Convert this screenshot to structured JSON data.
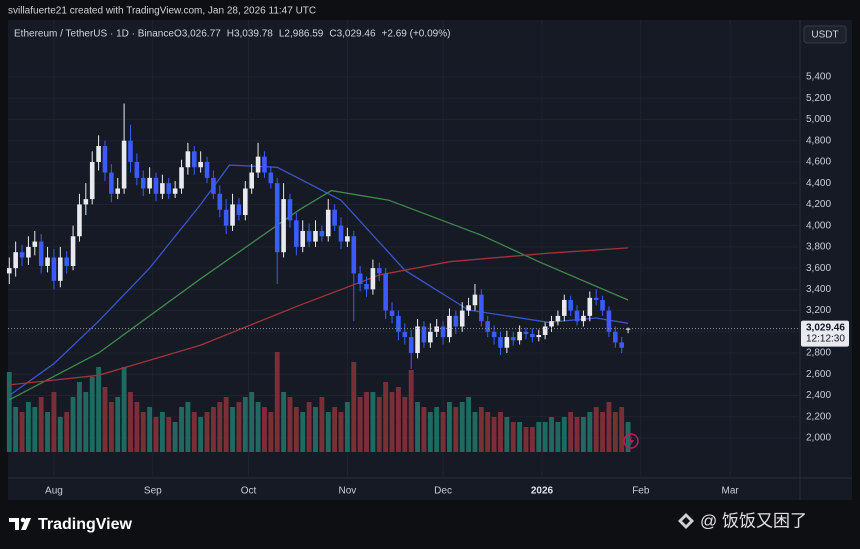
{
  "header": {
    "credit": "svillafuerte21 created with TradingView.com, Jan 28, 2026 11:47 UTC"
  },
  "chart_data": {
    "type": "candlestick",
    "legend": {
      "name": "Ethereum / TetherUS · 1D · Binance",
      "items": [
        "O3,026.77",
        "H3,039.78",
        "L2,986.59",
        "C3,029.46",
        "+2.69 (+0.09%)"
      ]
    },
    "y_axis_unit": "USDT",
    "x": [
      -14,
      -12,
      -10,
      -8,
      -6,
      -4,
      -2,
      0,
      2,
      4,
      6,
      8,
      10,
      12,
      14,
      16,
      18,
      20,
      22,
      24,
      26,
      28,
      30,
      32,
      34,
      36,
      38,
      40,
      42,
      44,
      46,
      48,
      50,
      52,
      54,
      56,
      58,
      60,
      62,
      64,
      66,
      68,
      70,
      72,
      74,
      76,
      78,
      80,
      82,
      84,
      86,
      88,
      90,
      92,
      94,
      96,
      98,
      100,
      102,
      104,
      106,
      108,
      110,
      112,
      114,
      116,
      118,
      120,
      122,
      124,
      126,
      128,
      130,
      132,
      134,
      136,
      138,
      140,
      142,
      144,
      146,
      148,
      150,
      152,
      154,
      156,
      158,
      160,
      162,
      164,
      166,
      168,
      170,
      172,
      174,
      176,
      178,
      180
    ],
    "open": [
      3550,
      3600,
      3750,
      3700,
      3800,
      3850,
      3620,
      3700,
      3480,
      3700,
      3620,
      3900,
      4200,
      4250,
      4600,
      4750,
      4500,
      4300,
      4350,
      4800,
      4600,
      4450,
      4350,
      4450,
      4300,
      4400,
      4300,
      4350,
      4550,
      4700,
      4550,
      4600,
      4450,
      4300,
      4150,
      4000,
      4200,
      4100,
      4350,
      4500,
      4650,
      4500,
      4400,
      3750,
      4250,
      4050,
      3800,
      3950,
      3850,
      3950,
      3900,
      4150,
      4000,
      3850,
      3900,
      3550,
      3450,
      3400,
      3600,
      3550,
      3200,
      3150,
      3000,
      2950,
      2800,
      3050,
      2900,
      3000,
      3050,
      2950,
      3150,
      3050,
      3200,
      3250,
      3350,
      3100,
      3000,
      2950,
      2850,
      2950,
      2920,
      3000,
      2980,
      2950,
      2970,
      3050,
      3100,
      3150,
      3300,
      3200,
      3100,
      3150,
      3320,
      3300,
      3200,
      3000,
      2900,
      3026.77
    ],
    "high": [
      3700,
      3850,
      3820,
      3900,
      3950,
      3920,
      3800,
      3780,
      3800,
      3760,
      4000,
      4300,
      4400,
      4700,
      4850,
      4800,
      4580,
      4450,
      5150,
      4950,
      4680,
      4520,
      4550,
      4500,
      4480,
      4450,
      4420,
      4620,
      4780,
      4750,
      4700,
      4650,
      4520,
      4380,
      4250,
      4300,
      4260,
      4420,
      4580,
      4780,
      4700,
      4560,
      4450,
      4400,
      4300,
      4120,
      4050,
      4020,
      4050,
      4000,
      4250,
      4200,
      4080,
      3980,
      3950,
      3620,
      3520,
      3680,
      3650,
      3600,
      3280,
      3200,
      3080,
      3020,
      3120,
      3100,
      3080,
      3120,
      3100,
      3220,
      3200,
      3280,
      3320,
      3450,
      3400,
      3150,
      3060,
      3000,
      3010,
      3000,
      3060,
      3040,
      3030,
      3020,
      3090,
      3150,
      3200,
      3350,
      3340,
      3250,
      3200,
      3380,
      3400,
      3340,
      3240,
      3050,
      2950,
      3039.78
    ],
    "low": [
      3450,
      3520,
      3620,
      3630,
      3720,
      3550,
      3560,
      3400,
      3420,
      3550,
      3580,
      3850,
      4100,
      4200,
      4520,
      4420,
      4220,
      4250,
      4300,
      4500,
      4380,
      4280,
      4300,
      4230,
      4250,
      4250,
      4260,
      4300,
      4480,
      4480,
      4500,
      4400,
      4250,
      4080,
      3920,
      3950,
      4050,
      4050,
      4300,
      4450,
      4450,
      4350,
      3450,
      3700,
      3980,
      3720,
      3750,
      3800,
      3800,
      3850,
      3850,
      3950,
      3780,
      3800,
      3100,
      3380,
      3330,
      3350,
      3480,
      3120,
      3080,
      2920,
      2880,
      2650,
      2750,
      2850,
      2850,
      2950,
      2880,
      2900,
      2980,
      3000,
      3150,
      3200,
      3050,
      2950,
      2880,
      2780,
      2800,
      2870,
      2880,
      2930,
      2900,
      2910,
      2930,
      3000,
      3060,
      3100,
      3150,
      3060,
      3050,
      3100,
      3250,
      3150,
      2950,
      2850,
      2800,
      2986.59
    ],
    "close": [
      3600,
      3750,
      3700,
      3800,
      3850,
      3620,
      3700,
      3480,
      3700,
      3620,
      3900,
      4200,
      4250,
      4600,
      4750,
      4500,
      4300,
      4350,
      4800,
      4600,
      4450,
      4350,
      4450,
      4300,
      4400,
      4300,
      4350,
      4550,
      4700,
      4550,
      4600,
      4450,
      4300,
      4150,
      4000,
      4200,
      4100,
      4350,
      4500,
      4650,
      4500,
      4400,
      3750,
      4250,
      4050,
      3800,
      3950,
      3850,
      3950,
      3900,
      4150,
      4000,
      3850,
      3900,
      3550,
      3450,
      3400,
      3600,
      3550,
      3200,
      3150,
      3000,
      2950,
      2800,
      3050,
      2900,
      3000,
      3050,
      2950,
      3150,
      3050,
      3200,
      3250,
      3350,
      3100,
      3000,
      2950,
      2850,
      2950,
      2920,
      3000,
      2980,
      2950,
      2970,
      3050,
      3100,
      3150,
      3300,
      3200,
      3100,
      3150,
      3320,
      3300,
      3200,
      3000,
      2900,
      2850,
      3029.46
    ],
    "volume": [
      80,
      45,
      40,
      50,
      45,
      55,
      40,
      60,
      35,
      40,
      55,
      70,
      60,
      75,
      85,
      65,
      50,
      55,
      85,
      60,
      50,
      40,
      45,
      35,
      40,
      35,
      30,
      45,
      50,
      40,
      35,
      40,
      45,
      50,
      55,
      45,
      50,
      55,
      60,
      50,
      45,
      40,
      100,
      60,
      55,
      45,
      40,
      50,
      45,
      55,
      40,
      45,
      40,
      50,
      90,
      55,
      60,
      60,
      55,
      70,
      60,
      65,
      55,
      82,
      50,
      45,
      40,
      45,
      40,
      50,
      45,
      50,
      55,
      40,
      45,
      40,
      35,
      40,
      35,
      30,
      30,
      25,
      25,
      30,
      30,
      35,
      30,
      35,
      40,
      35,
      35,
      40,
      45,
      40,
      50,
      40,
      45,
      30
    ],
    "volume_ylim": [
      0,
      100
    ],
    "up_color": "#e8eaf0",
    "down_color": "#3b5bfd",
    "volume_up_color": "#1f6a60",
    "volume_down_color": "#7a2f37",
    "series": [
      {
        "color": "#3a55c9",
        "x": [
          -14,
          0,
          14,
          30,
          46,
          55,
          70,
          90,
          110,
          130,
          155,
          170,
          180
        ],
        "values": [
          2400,
          2700,
          3100,
          3600,
          4200,
          4570,
          4550,
          4240,
          3580,
          3205,
          3090,
          3130,
          3080
        ]
      },
      {
        "color": "#3f8a4a",
        "x": [
          -14,
          14,
          46,
          77,
          87,
          105,
          134,
          152,
          180
        ],
        "values": [
          2360,
          2800,
          3500,
          4150,
          4330,
          4240,
          3910,
          3660,
          3300
        ]
      },
      {
        "color": "#a3323c",
        "x": [
          -14,
          14,
          46,
          77,
          102,
          124,
          155,
          180
        ],
        "values": [
          2500,
          2590,
          2875,
          3250,
          3535,
          3660,
          3740,
          3790
        ]
      }
    ],
    "last_price": {
      "value": 3029.46,
      "label": "3,029.46"
    },
    "countdown": "12:12:30",
    "xlim": [
      -14.4,
      233.9
    ],
    "xticks": [
      {
        "value": 0,
        "label": "Aug"
      },
      {
        "value": 31,
        "label": "Sep"
      },
      {
        "value": 61,
        "label": "Oct"
      },
      {
        "value": 92,
        "label": "Nov"
      },
      {
        "value": 122,
        "label": "Dec"
      },
      {
        "value": 153,
        "label": "2026"
      },
      {
        "value": 184,
        "label": "Feb"
      },
      {
        "value": 212,
        "label": "Mar"
      }
    ],
    "ylim": [
      1623,
      5937
    ],
    "yticks": [
      {
        "value": 2000,
        "label": "2,000"
      },
      {
        "value": 2200,
        "label": "2,200"
      },
      {
        "value": 2400,
        "label": "2,400"
      },
      {
        "value": 2600,
        "label": "2,600"
      },
      {
        "value": 2800,
        "label": "2,800"
      },
      {
        "value": 3000,
        "label": "3,000"
      },
      {
        "value": 3200,
        "label": "3,200"
      },
      {
        "value": 3400,
        "label": "3,400"
      },
      {
        "value": 3600,
        "label": "3,600"
      },
      {
        "value": 3800,
        "label": "3,800"
      },
      {
        "value": 4000,
        "label": "4,000"
      },
      {
        "value": 4200,
        "label": "4,200"
      },
      {
        "value": 4400,
        "label": "4,400"
      },
      {
        "value": 4600,
        "label": "4,600"
      },
      {
        "value": 4800,
        "label": "4,800"
      },
      {
        "value": 5000,
        "label": "5,000"
      },
      {
        "value": 5200,
        "label": "5,200"
      },
      {
        "value": 5400,
        "label": "5,400"
      }
    ],
    "grid": true
  },
  "footer": {
    "brand": "TradingView",
    "watermark": "@ 饭饭又困了"
  }
}
